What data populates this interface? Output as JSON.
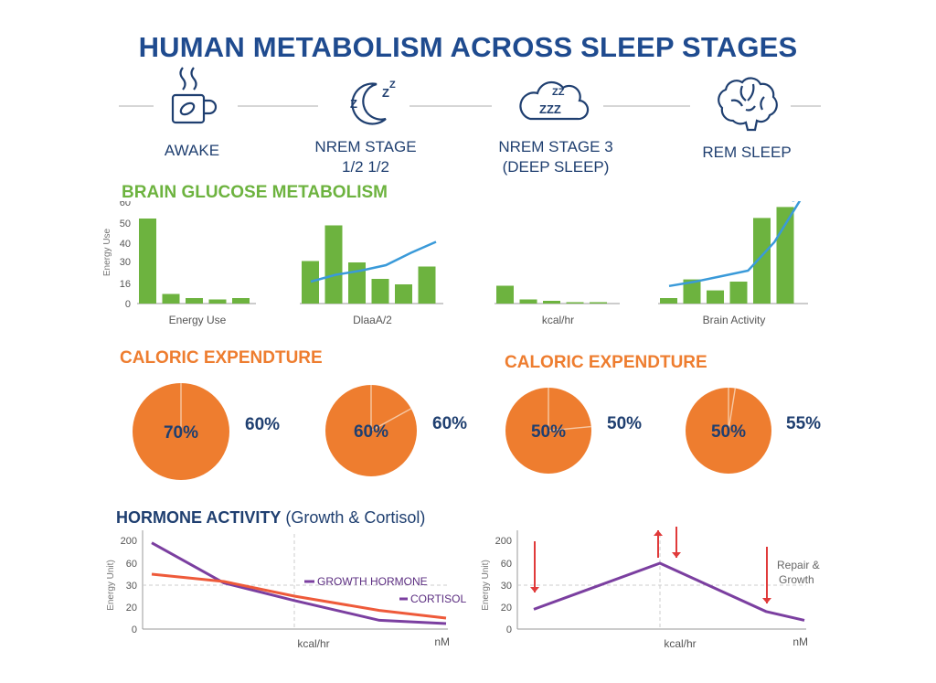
{
  "title": "HUMAN METABOLISM ACROSS SLEEP STAGES",
  "stages": [
    {
      "label_line1": "AWAKE",
      "label_line2": "",
      "icon": "coffee-cup-icon"
    },
    {
      "label_line1": "NREM STAGE",
      "label_line2": "1/2 1/2",
      "icon": "crescent-moon-zzz-icon"
    },
    {
      "label_line1": "NREM STAGE 3",
      "label_line2": "(DEEP SLEEP)",
      "icon": "cloud-zzz-icon"
    },
    {
      "label_line1": "REM SLEEP",
      "label_line2": "",
      "icon": "brain-icon"
    }
  ],
  "sections": {
    "glucose": "BRAIN GLUCOSE METABOLISM",
    "caloric_left": "CALORIC EXPENDTURE",
    "caloric_right": "CALORIC EXPENDTURE",
    "hormone_main": "HORMONE ACTIVITY",
    "hormone_sub": "(Growth & Cortisol)"
  },
  "colors": {
    "title": "#1f4b8f",
    "bar": "#6db33f",
    "trend": "#3a9ad9",
    "pie": "#ee7d2f",
    "growth": "#7b3fa0",
    "cortisol": "#ee5a3a",
    "arrow": "#e03a3a"
  },
  "chart_data": [
    {
      "type": "bar",
      "stage": "AWAKE",
      "ylabel": "Energy Use",
      "yticks": [
        0,
        16,
        30,
        40,
        50,
        60
      ],
      "values": [
        62,
        7,
        4,
        3,
        4
      ],
      "xlabel": "Energy Use"
    },
    {
      "type": "bar",
      "stage": "NREM STAGE 1/2 1/2",
      "values": [
        31,
        57,
        30,
        18,
        14,
        27
      ],
      "trend": [
        16,
        21,
        24,
        28,
        37,
        45
      ],
      "xlabel": "DlaaА/2"
    },
    {
      "type": "bar",
      "stage": "NREM STAGE 3",
      "values": [
        13,
        3,
        2,
        1,
        1
      ],
      "xlabel": "kcal/hr"
    },
    {
      "type": "bar",
      "stage": "REM SLEEP",
      "values": [
        5,
        22,
        12,
        20,
        78,
        88
      ],
      "trend": [
        16,
        20,
        25,
        30,
        56,
        95
      ],
      "xlabel": "Brain Activity"
    },
    {
      "type": "pie",
      "stage": "AWAKE",
      "inside_label": "70%",
      "outside_label": "60%",
      "split_fraction": 0.0
    },
    {
      "type": "pie",
      "stage": "NREM STAGE 1/2 1/2",
      "inside_label": "60%",
      "outside_label": "60%",
      "split_fraction": 0.17
    },
    {
      "type": "pie",
      "stage": "NREM STAGE 3",
      "inside_label": "50%",
      "outside_label": "50%",
      "split_fraction": 0.235
    },
    {
      "type": "pie",
      "stage": "REM SLEEP",
      "inside_label": "50%",
      "outside_label": "55%",
      "split_fraction": 0.025
    },
    {
      "type": "line",
      "ylabel": "Energy Unit)",
      "yticks": [
        "0",
        "20",
        "30",
        "60",
        "200"
      ],
      "xlabel": "kcal/hr",
      "xunit": "nM",
      "series": [
        {
          "name": "GROWTH HORMONE",
          "x": [
            0,
            1,
            2,
            3,
            4
          ],
          "y": [
            185,
            33,
            23,
            8,
            5
          ]
        },
        {
          "name": "CORTISOL",
          "x": [
            0,
            1,
            2,
            3,
            4
          ],
          "y": [
            45,
            35,
            25,
            17,
            10
          ]
        }
      ]
    },
    {
      "type": "line",
      "ylabel": "Energy Unit)",
      "yticks": [
        "0",
        "20",
        "30",
        "60",
        "200"
      ],
      "xlabel": "kcal/hr",
      "xunit": "nM",
      "annotation": "Repair & Growth",
      "series": [
        {
          "name": "",
          "x": [
            0,
            1,
            2,
            3
          ],
          "y": [
            18,
            60,
            16,
            8
          ]
        }
      ]
    }
  ]
}
